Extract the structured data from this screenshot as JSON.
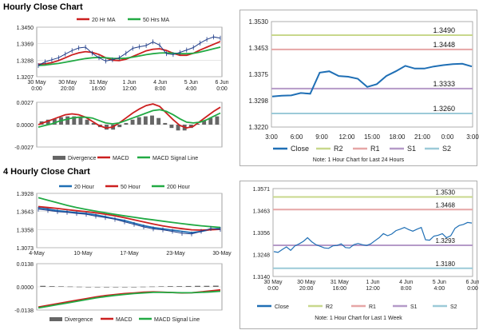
{
  "sections": {
    "hourly_title": "Hourly Close Chart",
    "four_hourly_title": "4 Hourly Close Chart"
  },
  "chart_data": [
    {
      "id": "hourly_price",
      "type": "line",
      "ylim": [
        1.3207,
        1.345
      ],
      "y_ticks": [
        "1.3450",
        "1.3369",
        "1.3288",
        "1.3207"
      ],
      "x_ticks": [
        "30 May\n0:00",
        "30 May\n20:00",
        "31 May\n16:00",
        "1 Jun\n12:00",
        "4 Jun\n8:00",
        "5 Jun\n4:00",
        "6 Jun\n0:00"
      ],
      "legend": [
        "20 Hr MA",
        "50 Hrs MA"
      ],
      "series": [
        {
          "name": "20 Hr MA",
          "color": "#cc1f1f",
          "values": [
            1.3268,
            1.327,
            1.3276,
            1.3286,
            1.33,
            1.3314,
            1.3324,
            1.333,
            1.3326,
            1.3316,
            1.33,
            1.3288,
            1.3286,
            1.3293,
            1.3306,
            1.332,
            1.3334,
            1.3342,
            1.3344,
            1.3336,
            1.3322,
            1.3312,
            1.3312,
            1.3322,
            1.3338,
            1.3352,
            1.3366,
            1.338
          ]
        },
        {
          "name": "50 Hrs MA",
          "color": "#22aa44",
          "values": [
            1.3262,
            1.3264,
            1.3268,
            1.3272,
            1.3278,
            1.3284,
            1.329,
            1.3296,
            1.33,
            1.3302,
            1.33,
            1.3297,
            1.3296,
            1.3298,
            1.3303,
            1.3309,
            1.3315,
            1.332,
            1.3323,
            1.3324,
            1.3322,
            1.332,
            1.332,
            1.3322,
            1.3328,
            1.3336,
            1.3344,
            1.3352
          ]
        },
        {
          "name": "Price",
          "color": "#1f3c88",
          "values": [
            1.3262,
            1.328,
            1.329,
            1.33,
            1.3318,
            1.3335,
            1.3348,
            1.3352,
            1.3322,
            1.33,
            1.3284,
            1.329,
            1.33,
            1.3322,
            1.3346,
            1.3354,
            1.336,
            1.3378,
            1.3362,
            1.332,
            1.3316,
            1.3326,
            1.3338,
            1.335,
            1.3372,
            1.339,
            1.3402,
            1.3396
          ]
        }
      ]
    },
    {
      "id": "hourly_macd",
      "type": "line",
      "ylim": [
        -0.0027,
        0.0027
      ],
      "y_ticks": [
        "0.0027",
        "0.0000",
        "-0.0027"
      ],
      "legend": [
        "Divergence",
        "MACD",
        "MACD Signal Line"
      ],
      "series": [
        {
          "name": "Divergence",
          "color": "#666666",
          "values": [
            0.0004,
            0.0006,
            0.0007,
            0.0009,
            0.001,
            0.001,
            0.0009,
            0.0006,
            0.0002,
            -0.0003,
            -0.0006,
            -0.0006,
            -0.0003,
            0.0002,
            0.0006,
            0.0009,
            0.001,
            0.0011,
            0.0008,
            0.0002,
            -0.0004,
            -0.0007,
            -0.0007,
            -0.0004,
            0.0001,
            0.0005,
            0.0008,
            0.001
          ]
        },
        {
          "name": "MACD",
          "color": "#cc1f1f",
          "values": [
            0.0,
            0.0003,
            0.0006,
            0.0009,
            0.0012,
            0.0013,
            0.0012,
            0.0009,
            0.0004,
            -0.0001,
            -0.0004,
            -0.0003,
            0.0002,
            0.0008,
            0.0014,
            0.0019,
            0.0023,
            0.0025,
            0.0022,
            0.0014,
            0.0006,
            -0.0001,
            -0.0004,
            -0.0002,
            0.0004,
            0.001,
            0.0016,
            0.0021
          ]
        },
        {
          "name": "MACD Signal Line",
          "color": "#22aa44",
          "values": [
            -0.0003,
            -0.0001,
            0.0001,
            0.0004,
            0.0006,
            0.0008,
            0.0009,
            0.0009,
            0.0008,
            0.0005,
            0.0002,
            0.0001,
            0.0002,
            0.0005,
            0.0008,
            0.0011,
            0.0014,
            0.0017,
            0.0018,
            0.0016,
            0.0012,
            0.0007,
            0.0003,
            0.0002,
            0.0003,
            0.0006,
            0.001,
            0.0014
          ]
        }
      ]
    },
    {
      "id": "hourly_last24",
      "type": "line",
      "ylim": [
        1.322,
        1.353
      ],
      "y_ticks": [
        "1.3530",
        "1.3453",
        "1.3375",
        "1.3298",
        "1.3220"
      ],
      "x_ticks": [
        "3:00",
        "6:00",
        "9:00",
        "12:00",
        "15:00",
        "18:00",
        "21:00",
        "0:00",
        "3:00"
      ],
      "levels": [
        {
          "name": "R2",
          "value": 1.349,
          "label": "1.3490",
          "color": "#c8d88c"
        },
        {
          "name": "R1",
          "value": 1.3448,
          "label": "1.3448",
          "color": "#e6a6a6"
        },
        {
          "name": "S1",
          "value": 1.3333,
          "label": "1.3333",
          "color": "#b59ac8"
        },
        {
          "name": "S2",
          "value": 1.326,
          "label": "1.3260",
          "color": "#9ccad8"
        }
      ],
      "legend": [
        "Close",
        "R2",
        "R1",
        "S1",
        "S2"
      ],
      "note": "Note: 1 Hour Chart for Last 24 Hours",
      "series": [
        {
          "name": "Close",
          "color": "#1f6fb5",
          "values": [
            1.331,
            1.3312,
            1.3313,
            1.332,
            1.3318,
            1.338,
            1.3384,
            1.337,
            1.3368,
            1.3362,
            1.3338,
            1.3346,
            1.337,
            1.3384,
            1.34,
            1.3392,
            1.3392,
            1.3398,
            1.3402,
            1.3405,
            1.3406,
            1.3398
          ]
        }
      ]
    },
    {
      "id": "four_hourly_price",
      "type": "line",
      "ylim": [
        1.3073,
        1.3928
      ],
      "y_ticks": [
        "1.3928",
        "1.3643",
        "1.3358",
        "1.3073"
      ],
      "x_ticks": [
        "4-May",
        "10-May",
        "17-May",
        "23-May",
        "30-May"
      ],
      "legend": [
        "20 Hour",
        "50 Hour",
        "200 Hour"
      ],
      "series": [
        {
          "name": "20 Hour",
          "color": "#1f6fb5",
          "values": [
            1.37,
            1.368,
            1.3655,
            1.364,
            1.3625,
            1.3612,
            1.359,
            1.356,
            1.353,
            1.35,
            1.346,
            1.342,
            1.339,
            1.337,
            1.335,
            1.333,
            1.331,
            1.333,
            1.336,
            1.338
          ]
        },
        {
          "name": "50 Hour",
          "color": "#cc1f1f",
          "values": [
            1.372,
            1.3705,
            1.369,
            1.3672,
            1.3655,
            1.364,
            1.3622,
            1.36,
            1.3575,
            1.3545,
            1.3512,
            1.3478,
            1.3445,
            1.3415,
            1.3392,
            1.3372,
            1.3355,
            1.335,
            1.3355,
            1.3362
          ]
        },
        {
          "name": "200 Hour",
          "color": "#22aa44",
          "values": [
            1.386,
            1.382,
            1.378,
            1.374,
            1.3705,
            1.3675,
            1.3648,
            1.3622,
            1.3597,
            1.3574,
            1.3552,
            1.353,
            1.351,
            1.349,
            1.347,
            1.3452,
            1.3434,
            1.3418,
            1.3404,
            1.3392
          ]
        },
        {
          "name": "Price",
          "color": "#1f3c88",
          "values": [
            1.368,
            1.366,
            1.364,
            1.363,
            1.3612,
            1.36,
            1.357,
            1.3548,
            1.352,
            1.348,
            1.344,
            1.34,
            1.337,
            1.3355,
            1.333,
            1.33,
            1.329,
            1.333,
            1.3375,
            1.336
          ]
        }
      ]
    },
    {
      "id": "four_hourly_macd",
      "type": "line",
      "ylim": [
        -0.0138,
        0.0138
      ],
      "y_ticks": [
        "0.0138",
        "0.0000",
        "-0.0138"
      ],
      "legend": [
        "Divergence",
        "MACD",
        "MACD Signal Line"
      ],
      "series": [
        {
          "name": "Divergence",
          "color": "#666666",
          "values": [
            0.0006,
            0.0004,
            0.0003,
            0.0002,
            0.0001,
            0.0,
            -0.0002,
            -0.0003,
            -0.0002,
            -0.0001,
            0.0,
            0.0001,
            0.0002,
            0.0003,
            0.0004,
            0.0004,
            0.0005,
            0.0006,
            0.0006,
            0.0007
          ]
        },
        {
          "name": "MACD",
          "color": "#cc1f1f",
          "values": [
            -0.012,
            -0.011,
            -0.01,
            -0.009,
            -0.008,
            -0.007,
            -0.006,
            -0.0052,
            -0.0046,
            -0.004,
            -0.0036,
            -0.0032,
            -0.003,
            -0.0032,
            -0.0034,
            -0.0036,
            -0.0035,
            -0.003,
            -0.0024,
            -0.0018
          ]
        },
        {
          "name": "MACD Signal Line",
          "color": "#22aa44",
          "values": [
            -0.0125,
            -0.0116,
            -0.0106,
            -0.0096,
            -0.0086,
            -0.0076,
            -0.0066,
            -0.0058,
            -0.0051,
            -0.0045,
            -0.004,
            -0.0036,
            -0.0033,
            -0.0033,
            -0.0034,
            -0.0035,
            -0.0035,
            -0.0033,
            -0.003,
            -0.0026
          ]
        }
      ]
    },
    {
      "id": "four_hourly_last_week",
      "type": "line",
      "ylim": [
        1.314,
        1.3571
      ],
      "y_ticks": [
        "1.3571",
        "1.3463",
        "1.3356",
        "1.3248",
        "1.3140"
      ],
      "x_ticks": [
        "30 May\n0:00",
        "30 May\n20:00",
        "31 May\n16:00",
        "1 Jun\n12:00",
        "4 Jun\n8:00",
        "5 Jun\n4:00",
        "6 Jun\n0:00"
      ],
      "levels": [
        {
          "name": "R2",
          "value": 1.353,
          "label": "1.3530",
          "color": "#c8d88c"
        },
        {
          "name": "R1",
          "value": 1.3468,
          "label": "1.3468",
          "color": "#e6a6a6"
        },
        {
          "name": "S1",
          "value": 1.3293,
          "label": "1.3293",
          "color": "#b59ac8"
        },
        {
          "name": "S2",
          "value": 1.318,
          "label": "1.3180",
          "color": "#9ccad8"
        }
      ],
      "legend": [
        "Close",
        "R2",
        "R1",
        "S1",
        "S2"
      ],
      "note": "Note: 1 Hour Chart for Last 1 Week",
      "series": [
        {
          "name": "Close",
          "color": "#1f6fb5",
          "values": [
            1.3262,
            1.3258,
            1.3272,
            1.3285,
            1.3268,
            1.329,
            1.33,
            1.3312,
            1.333,
            1.331,
            1.3296,
            1.3288,
            1.328,
            1.3278,
            1.329,
            1.3292,
            1.33,
            1.3282,
            1.328,
            1.3296,
            1.3302,
            1.3296,
            1.3292,
            1.33,
            1.3315,
            1.333,
            1.335,
            1.334,
            1.3348,
            1.3365,
            1.3372,
            1.338,
            1.337,
            1.3362,
            1.3372,
            1.338,
            1.332,
            1.3318,
            1.3338,
            1.3342,
            1.335,
            1.333,
            1.334,
            1.3376,
            1.339,
            1.3395,
            1.3405,
            1.3402
          ]
        }
      ]
    }
  ]
}
